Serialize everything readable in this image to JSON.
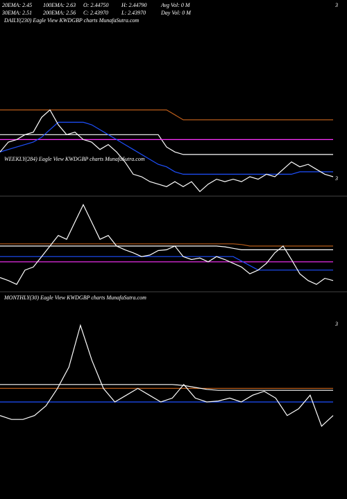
{
  "header": {
    "rows": [
      [
        "20EMA: 2.45",
        "100EMA: 2.63",
        "O: 2.44750",
        "H: 2.44790",
        "Avg Vol: 0  M"
      ],
      [
        "30EMA: 2.51",
        "200EMA: 2.56",
        "C: 2.43970",
        "L: 2.43970",
        "Day Vol: 0  M"
      ]
    ],
    "right": "3"
  },
  "chart_data": [
    {
      "type": "line",
      "title": "DAILY(230) Eagle  View  KWDGBP charts MunafaSutra.com",
      "last_label": "3",
      "ylim": [
        2.2,
        2.9
      ],
      "categories": [
        null,
        null,
        null,
        null,
        null,
        null,
        null,
        null,
        null,
        null,
        null,
        null,
        null,
        null,
        null,
        null,
        null,
        null,
        null,
        null,
        null,
        null,
        null,
        null,
        null,
        null,
        null,
        null,
        null,
        null,
        null,
        null,
        null,
        null,
        null,
        null,
        null,
        null,
        null,
        null,
        null
      ],
      "series": [
        {
          "color": "#b85c1a",
          "values": [
            2.54,
            2.54,
            2.54,
            2.54,
            2.54,
            2.54,
            2.54,
            2.54,
            2.54,
            2.54,
            2.54,
            2.54,
            2.54,
            2.54,
            2.54,
            2.54,
            2.54,
            2.54,
            2.54,
            2.54,
            2.54,
            2.52,
            2.5,
            2.5,
            2.5,
            2.5,
            2.5,
            2.5,
            2.5,
            2.5,
            2.5,
            2.5,
            2.5,
            2.5,
            2.5,
            2.5,
            2.5,
            2.5,
            2.5,
            2.5,
            2.5
          ]
        },
        {
          "color": "#ffffff",
          "values": [
            2.44,
            2.44,
            2.44,
            2.44,
            2.44,
            2.44,
            2.44,
            2.44,
            2.44,
            2.44,
            2.44,
            2.44,
            2.44,
            2.44,
            2.44,
            2.44,
            2.44,
            2.44,
            2.44,
            2.44,
            2.39,
            2.37,
            2.36,
            2.36,
            2.36,
            2.36,
            2.36,
            2.36,
            2.36,
            2.36,
            2.36,
            2.36,
            2.36,
            2.36,
            2.36,
            2.36,
            2.36,
            2.36,
            2.36,
            2.36,
            2.36
          ]
        },
        {
          "color": "#ff33ff",
          "values": [
            2.42,
            2.42,
            2.42,
            2.42,
            2.42,
            2.42,
            2.42,
            2.42,
            2.42,
            2.42,
            2.42,
            2.42,
            2.42,
            2.42,
            2.42,
            2.42,
            2.42,
            2.42,
            2.42,
            2.42,
            2.42,
            2.42,
            2.42,
            2.42,
            2.42,
            2.42,
            2.42,
            2.42,
            2.42,
            2.42,
            2.42,
            2.42,
            2.42,
            2.42,
            2.42,
            2.42,
            2.42,
            2.42,
            2.42,
            2.42,
            2.42
          ]
        },
        {
          "color": "#1e50ff",
          "values": [
            2.37,
            2.38,
            2.39,
            2.4,
            2.41,
            2.43,
            2.46,
            2.49,
            2.49,
            2.49,
            2.49,
            2.48,
            2.46,
            2.44,
            2.42,
            2.4,
            2.38,
            2.36,
            2.34,
            2.32,
            2.31,
            2.29,
            2.28,
            2.28,
            2.28,
            2.28,
            2.28,
            2.28,
            2.28,
            2.28,
            2.28,
            2.28,
            2.28,
            2.28,
            2.28,
            2.28,
            2.29,
            2.29,
            2.29,
            2.29,
            2.29
          ]
        },
        {
          "color": "#ffffff",
          "values": [
            2.37,
            2.41,
            2.42,
            2.44,
            2.45,
            2.51,
            2.54,
            2.48,
            2.44,
            2.45,
            2.42,
            2.41,
            2.38,
            2.4,
            2.37,
            2.33,
            2.28,
            2.27,
            2.25,
            2.24,
            2.23,
            2.25,
            2.23,
            2.25,
            2.21,
            2.24,
            2.26,
            2.25,
            2.26,
            2.25,
            2.27,
            2.26,
            2.28,
            2.27,
            2.3,
            2.33,
            2.31,
            2.32,
            2.3,
            2.28,
            2.27
          ]
        }
      ]
    },
    {
      "type": "line",
      "title": "WEEKLY(284) Eagle  View  KWDGBP charts MunafaSutra.com",
      "ylim": [
        2.0,
        3.2
      ],
      "categories": [
        null,
        null,
        null,
        null,
        null,
        null,
        null,
        null,
        null,
        null,
        null,
        null,
        null,
        null,
        null,
        null,
        null,
        null,
        null,
        null,
        null,
        null,
        null,
        null,
        null,
        null,
        null,
        null,
        null,
        null,
        null,
        null,
        null,
        null,
        null,
        null,
        null,
        null,
        null,
        null,
        null
      ],
      "series": [
        {
          "color": "#b85c1a",
          "values": [
            2.63,
            2.63,
            2.63,
            2.63,
            2.63,
            2.63,
            2.63,
            2.63,
            2.63,
            2.63,
            2.63,
            2.63,
            2.63,
            2.63,
            2.63,
            2.63,
            2.63,
            2.63,
            2.63,
            2.63,
            2.63,
            2.63,
            2.63,
            2.63,
            2.63,
            2.63,
            2.63,
            2.63,
            2.63,
            2.62,
            2.6,
            2.6,
            2.6,
            2.6,
            2.6,
            2.6,
            2.6,
            2.6,
            2.6,
            2.6,
            2.6
          ]
        },
        {
          "color": "#ffffff",
          "values": [
            2.6,
            2.6,
            2.6,
            2.6,
            2.6,
            2.6,
            2.6,
            2.6,
            2.6,
            2.6,
            2.6,
            2.6,
            2.6,
            2.6,
            2.6,
            2.6,
            2.6,
            2.6,
            2.6,
            2.6,
            2.6,
            2.6,
            2.6,
            2.6,
            2.6,
            2.6,
            2.6,
            2.59,
            2.57,
            2.55,
            2.55,
            2.55,
            2.55,
            2.55,
            2.55,
            2.55,
            2.55,
            2.55,
            2.55,
            2.55,
            2.55
          ]
        },
        {
          "color": "#ff33ff",
          "values": [
            2.39,
            2.39,
            2.39,
            2.39,
            2.39,
            2.39,
            2.39,
            2.39,
            2.39,
            2.39,
            2.39,
            2.39,
            2.39,
            2.39,
            2.39,
            2.39,
            2.39,
            2.39,
            2.39,
            2.39,
            2.39,
            2.39,
            2.39,
            2.39,
            2.39,
            2.39,
            2.39,
            2.39,
            2.39,
            2.39,
            2.39,
            2.39,
            2.39,
            2.39,
            2.39,
            2.39,
            2.39,
            2.39,
            2.39,
            2.39,
            2.39
          ]
        },
        {
          "color": "#1e50ff",
          "values": [
            2.46,
            2.46,
            2.46,
            2.46,
            2.46,
            2.46,
            2.46,
            2.46,
            2.46,
            2.46,
            2.46,
            2.46,
            2.46,
            2.46,
            2.46,
            2.46,
            2.46,
            2.46,
            2.46,
            2.46,
            2.46,
            2.46,
            2.46,
            2.46,
            2.46,
            2.46,
            2.46,
            2.46,
            2.46,
            2.4,
            2.34,
            2.28,
            2.28,
            2.28,
            2.28,
            2.28,
            2.28,
            2.28,
            2.28,
            2.28,
            2.28
          ]
        },
        {
          "color": "#ffffff",
          "values": [
            2.18,
            2.14,
            2.09,
            2.28,
            2.32,
            2.46,
            2.6,
            2.74,
            2.69,
            2.92,
            3.15,
            2.92,
            2.69,
            2.74,
            2.6,
            2.55,
            2.51,
            2.46,
            2.48,
            2.54,
            2.55,
            2.6,
            2.46,
            2.42,
            2.44,
            2.39,
            2.46,
            2.42,
            2.37,
            2.32,
            2.23,
            2.28,
            2.37,
            2.51,
            2.6,
            2.42,
            2.23,
            2.14,
            2.09,
            2.17,
            2.14
          ]
        }
      ]
    },
    {
      "type": "line",
      "title": "MONTHLY(30) Eagle  View  KWDGBP charts MunafaSutra.com",
      "last_label": "3",
      "ylim": [
        1.5,
        3.5
      ],
      "categories": [
        null,
        null,
        null,
        null,
        null,
        null,
        null,
        null,
        null,
        null,
        null,
        null,
        null,
        null,
        null,
        null,
        null,
        null,
        null,
        null,
        null,
        null,
        null,
        null,
        null,
        null,
        null,
        null,
        null,
        null
      ],
      "series": [
        {
          "color": "#b85c1a",
          "values": [
            2.64,
            2.64,
            2.64,
            2.64,
            2.64,
            2.64,
            2.64,
            2.64,
            2.64,
            2.64,
            2.64,
            2.64,
            2.64,
            2.64,
            2.64,
            2.64,
            2.64,
            2.64,
            2.64,
            2.64,
            2.64,
            2.64,
            2.64,
            2.64,
            2.64,
            2.64,
            2.64,
            2.64,
            2.64,
            2.64
          ]
        },
        {
          "color": "#ffffff",
          "values": [
            2.68,
            2.68,
            2.68,
            2.68,
            2.68,
            2.68,
            2.68,
            2.68,
            2.68,
            2.68,
            2.68,
            2.68,
            2.68,
            2.68,
            2.68,
            2.68,
            2.67,
            2.65,
            2.63,
            2.62,
            2.62,
            2.62,
            2.62,
            2.62,
            2.62,
            2.62,
            2.62,
            2.62,
            2.62,
            2.62
          ]
        },
        {
          "color": "#1e50ff",
          "values": [
            2.5,
            2.5,
            2.5,
            2.5,
            2.5,
            2.5,
            2.5,
            2.5,
            2.5,
            2.5,
            2.5,
            2.5,
            2.5,
            2.5,
            2.5,
            2.5,
            2.5,
            2.5,
            2.5,
            2.5,
            2.5,
            2.5,
            2.5,
            2.5,
            2.5,
            2.5,
            2.5,
            2.5,
            2.5,
            2.5
          ]
        },
        {
          "color": "#ffffff",
          "values": [
            2.36,
            2.32,
            2.32,
            2.36,
            2.46,
            2.64,
            2.86,
            3.29,
            2.93,
            2.64,
            2.5,
            2.57,
            2.64,
            2.57,
            2.5,
            2.54,
            2.68,
            2.54,
            2.5,
            2.51,
            2.54,
            2.5,
            2.57,
            2.61,
            2.54,
            2.36,
            2.43,
            2.57,
            2.25,
            2.36
          ]
        }
      ]
    }
  ]
}
